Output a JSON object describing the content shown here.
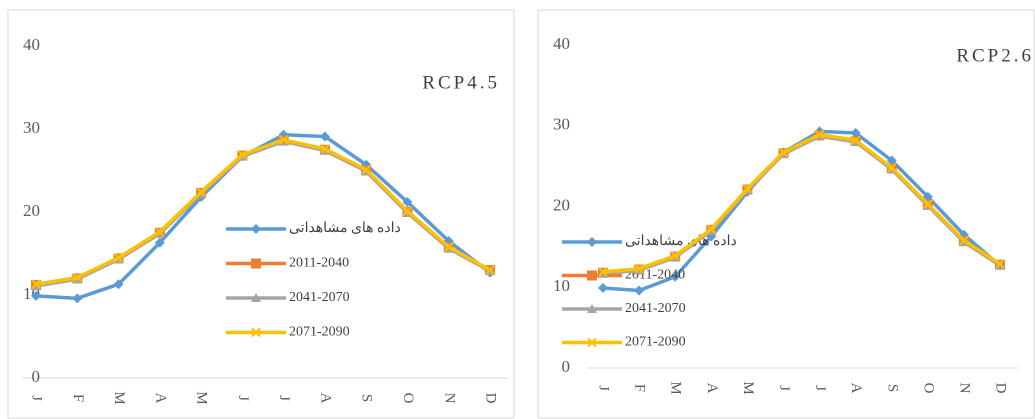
{
  "chart_data": [
    {
      "type": "line",
      "title": "RCP4.5",
      "categories": [
        "J",
        "F",
        "M",
        "A",
        "M",
        "J",
        "J",
        "A",
        "S",
        "O",
        "N",
        "D"
      ],
      "ylim": [
        0,
        40
      ],
      "yticks": [
        0,
        10,
        20,
        30,
        40
      ],
      "grid": false,
      "series": [
        {
          "name": "داده های مشاهداتی",
          "color": "#5b9bd5",
          "marker": "diamond",
          "values": [
            9.9,
            9.6,
            11.3,
            16.3,
            21.8,
            26.7,
            29.3,
            29.1,
            25.7,
            21.2,
            16.5,
            12.7
          ]
        },
        {
          "name": "2011-2040",
          "color": "#ed7d31",
          "marker": "square",
          "values": [
            11.2,
            12.0,
            14.4,
            17.5,
            22.3,
            26.8,
            28.6,
            27.5,
            25.0,
            20.0,
            15.7,
            13.0
          ]
        },
        {
          "name": "2041-2070",
          "color": "#a5a5a5",
          "marker": "triangle",
          "values": [
            11.1,
            11.9,
            14.3,
            17.4,
            22.2,
            26.7,
            28.5,
            27.4,
            24.9,
            19.9,
            15.6,
            12.9
          ]
        },
        {
          "name": "2071-2090",
          "color": "#ffc000",
          "marker": "x",
          "values": [
            11.3,
            12.1,
            14.5,
            17.6,
            22.4,
            26.9,
            28.7,
            27.6,
            25.1,
            20.1,
            15.8,
            13.0
          ]
        }
      ]
    },
    {
      "type": "line",
      "title": "RCP2.6",
      "categories": [
        "J",
        "F",
        "M",
        "A",
        "M",
        "J",
        "J",
        "A",
        "S",
        "O",
        "N",
        "D"
      ],
      "ylim": [
        0,
        40
      ],
      "yticks": [
        0,
        10,
        20,
        30,
        40
      ],
      "grid": false,
      "series": [
        {
          "name": "داده های مشاهداتی",
          "color": "#5b9bd5",
          "marker": "diamond",
          "values": [
            9.9,
            9.6,
            11.3,
            16.3,
            21.8,
            26.7,
            29.3,
            29.1,
            25.7,
            21.2,
            16.5,
            12.7
          ]
        },
        {
          "name": "2011-2040",
          "color": "#ed7d31",
          "marker": "square",
          "values": [
            11.8,
            12.2,
            13.8,
            17.1,
            22.1,
            26.6,
            28.8,
            28.1,
            24.7,
            20.2,
            15.7,
            12.8
          ]
        },
        {
          "name": "2041-2070",
          "color": "#a5a5a5",
          "marker": "triangle",
          "values": [
            11.7,
            12.1,
            13.7,
            17.0,
            22.0,
            26.5,
            28.7,
            28.0,
            24.6,
            20.1,
            15.6,
            12.7
          ]
        },
        {
          "name": "2071-2090",
          "color": "#ffc000",
          "marker": "x",
          "values": [
            11.9,
            12.3,
            13.9,
            17.2,
            22.2,
            26.7,
            28.9,
            28.2,
            24.8,
            20.3,
            15.8,
            12.9
          ]
        }
      ]
    }
  ]
}
